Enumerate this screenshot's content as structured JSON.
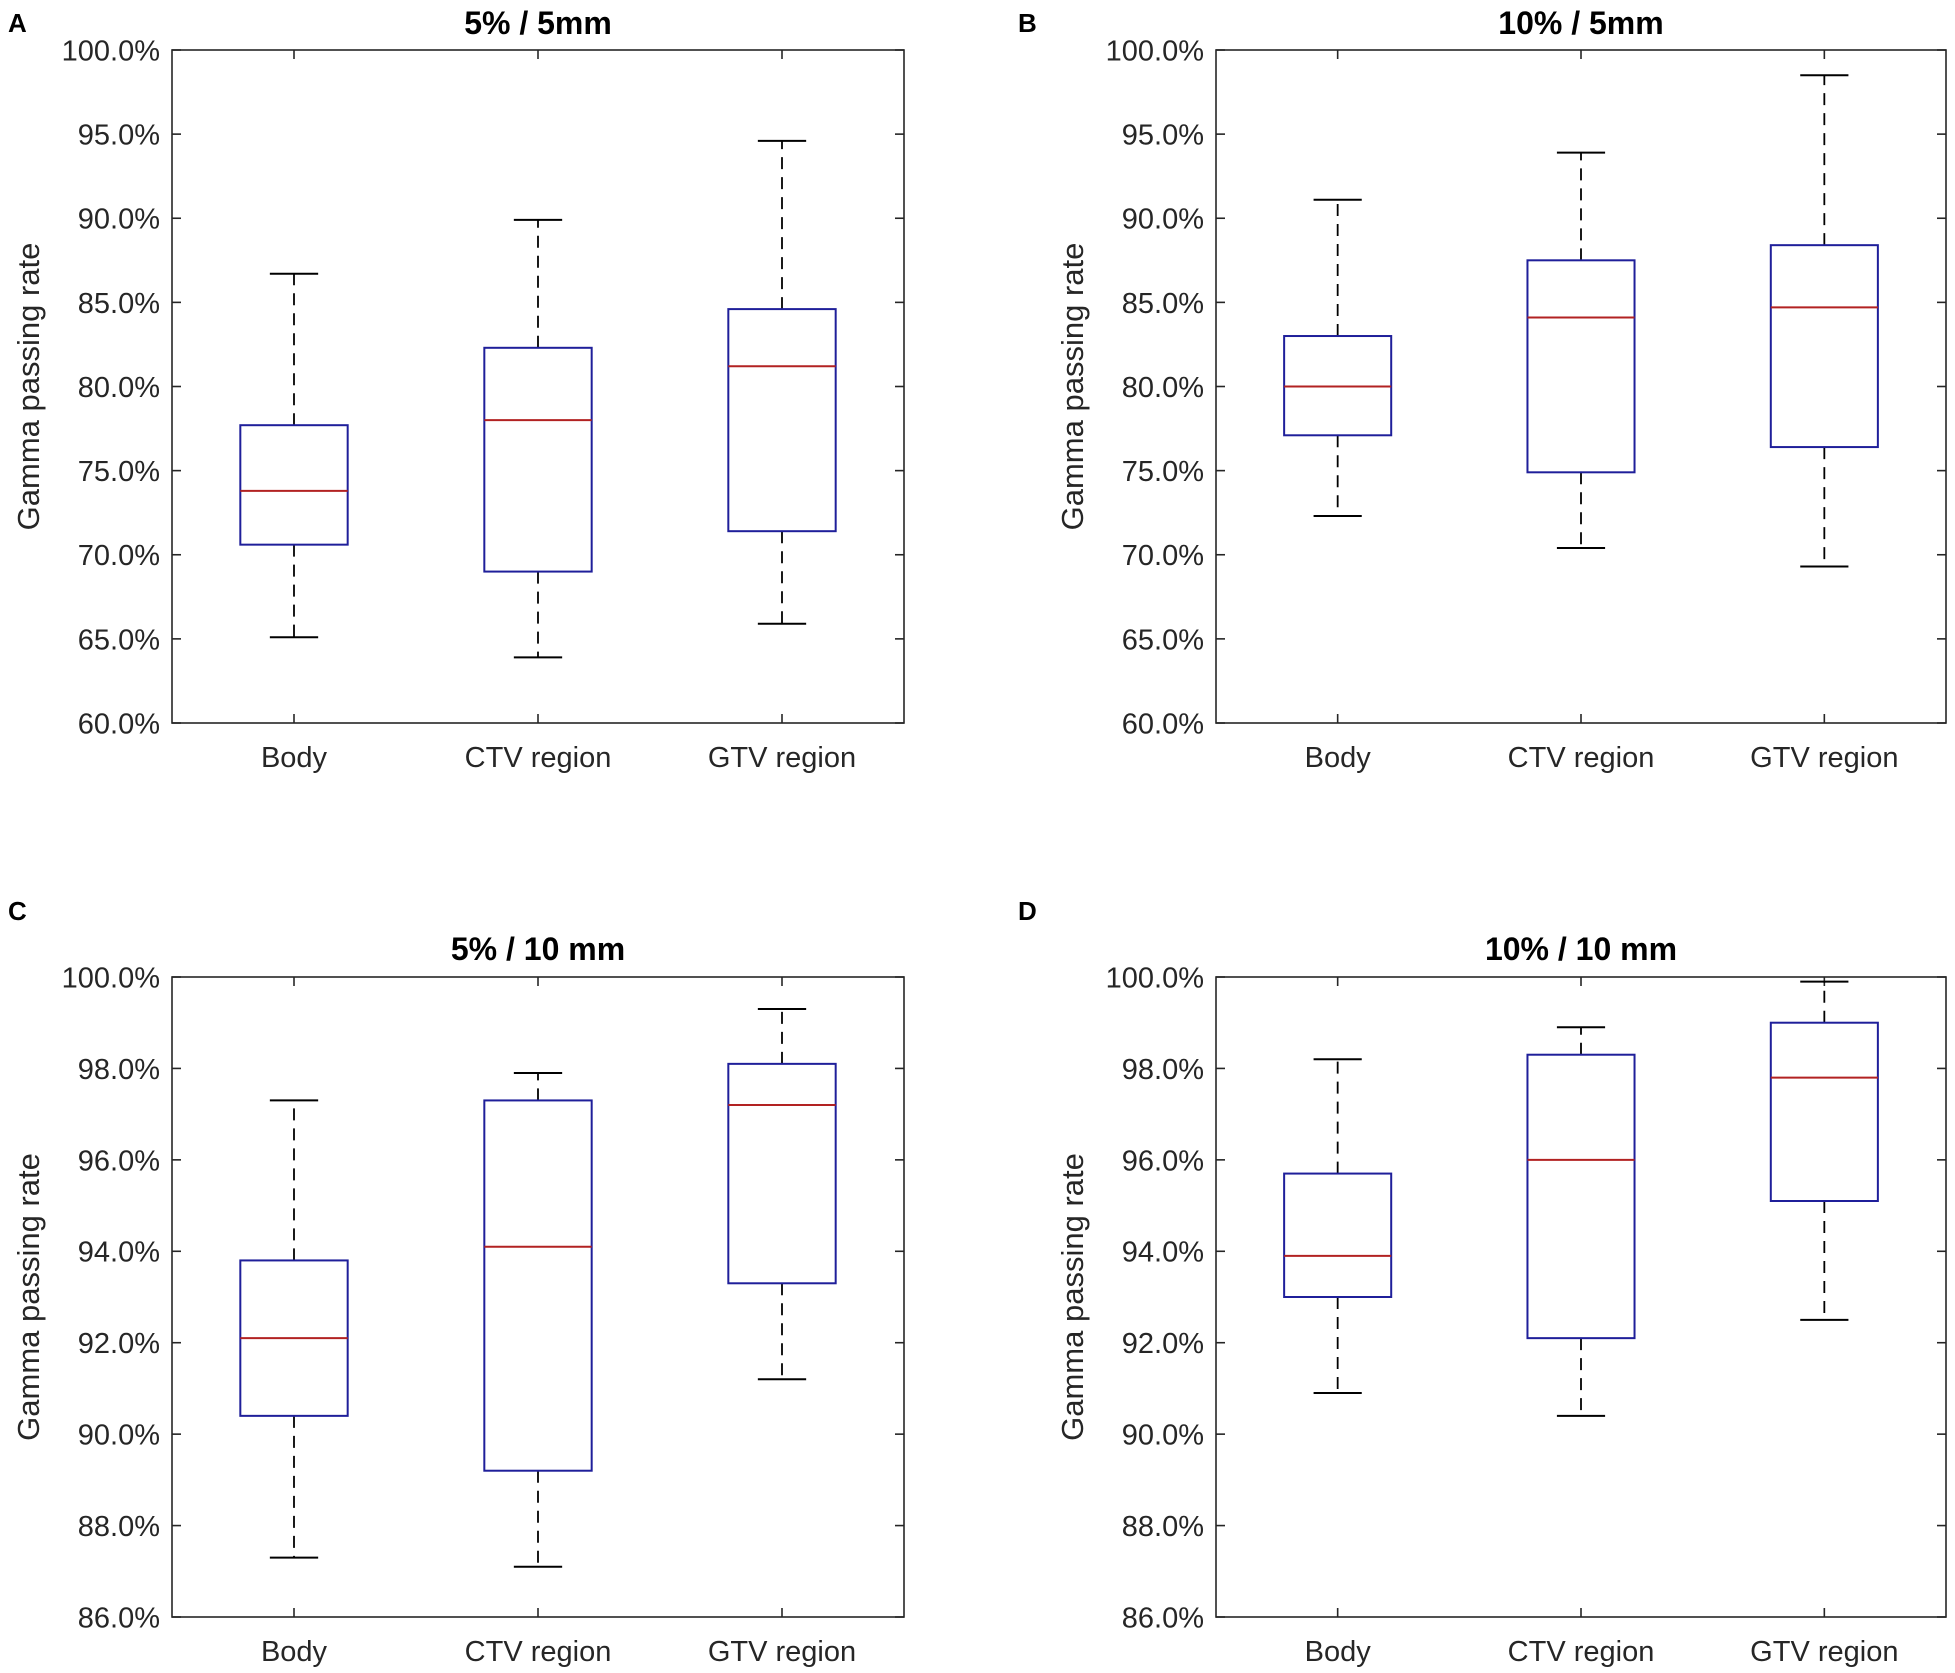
{
  "chart_data": [
    {
      "panel": "A",
      "type": "box",
      "title": "5% / 5mm",
      "ylabel": "Gamma passing rate",
      "xlabel": "",
      "ylim": [
        60,
        100
      ],
      "yticks": [
        "60.0%",
        "65.0%",
        "70.0%",
        "75.0%",
        "80.0%",
        "85.0%",
        "90.0%",
        "95.0%",
        "100.0%"
      ],
      "categories": [
        "Body",
        "CTV region",
        "GTV region"
      ],
      "boxes": [
        {
          "min": 65.1,
          "q1": 70.6,
          "median": 73.8,
          "q3": 77.7,
          "max": 86.7
        },
        {
          "min": 63.9,
          "q1": 69.0,
          "median": 78.0,
          "q3": 82.3,
          "max": 89.9
        },
        {
          "min": 65.9,
          "q1": 71.4,
          "median": 81.2,
          "q3": 84.6,
          "max": 94.6
        }
      ]
    },
    {
      "panel": "B",
      "type": "box",
      "title": "10% / 5mm",
      "ylabel": "Gamma passing rate",
      "xlabel": "",
      "ylim": [
        60,
        100
      ],
      "yticks": [
        "60.0%",
        "65.0%",
        "70.0%",
        "75.0%",
        "80.0%",
        "85.0%",
        "90.0%",
        "95.0%",
        "100.0%"
      ],
      "categories": [
        "Body",
        "CTV region",
        "GTV region"
      ],
      "boxes": [
        {
          "min": 72.3,
          "q1": 77.1,
          "median": 80.0,
          "q3": 83.0,
          "max": 91.1
        },
        {
          "min": 70.4,
          "q1": 74.9,
          "median": 84.1,
          "q3": 87.5,
          "max": 93.9
        },
        {
          "min": 69.3,
          "q1": 76.4,
          "median": 84.7,
          "q3": 88.4,
          "max": 98.5
        }
      ]
    },
    {
      "panel": "C",
      "type": "box",
      "title": "5% / 10 mm",
      "ylabel": "Gamma passing rate",
      "xlabel": "",
      "ylim": [
        86,
        100
      ],
      "yticks": [
        "86.0%",
        "88.0%",
        "90.0%",
        "92.0%",
        "94.0%",
        "96.0%",
        "98.0%",
        "100.0%"
      ],
      "categories": [
        "Body",
        "CTV region",
        "GTV region"
      ],
      "boxes": [
        {
          "min": 87.3,
          "q1": 90.4,
          "median": 92.1,
          "q3": 93.8,
          "max": 97.3
        },
        {
          "min": 87.1,
          "q1": 89.2,
          "median": 94.1,
          "q3": 97.3,
          "max": 97.9
        },
        {
          "min": 91.2,
          "q1": 93.3,
          "median": 97.2,
          "q3": 98.1,
          "max": 99.3
        }
      ]
    },
    {
      "panel": "D",
      "type": "box",
      "title": "10% / 10 mm",
      "ylabel": "Gamma passing rate",
      "xlabel": "",
      "ylim": [
        86,
        100
      ],
      "yticks": [
        "86.0%",
        "88.0%",
        "90.0%",
        "92.0%",
        "94.0%",
        "96.0%",
        "98.0%",
        "100.0%"
      ],
      "categories": [
        "Body",
        "CTV region",
        "GTV region"
      ],
      "boxes": [
        {
          "min": 90.9,
          "q1": 93.0,
          "median": 93.9,
          "q3": 95.7,
          "max": 98.2
        },
        {
          "min": 90.4,
          "q1": 92.1,
          "median": 96.0,
          "q3": 98.3,
          "max": 98.9
        },
        {
          "min": 92.5,
          "q1": 95.1,
          "median": 97.8,
          "q3": 99.0,
          "max": 99.9
        }
      ]
    }
  ],
  "colors": {
    "box": "#1f1f9a",
    "median": "#b22222",
    "whisker": "#000000",
    "axis": "#262626"
  }
}
